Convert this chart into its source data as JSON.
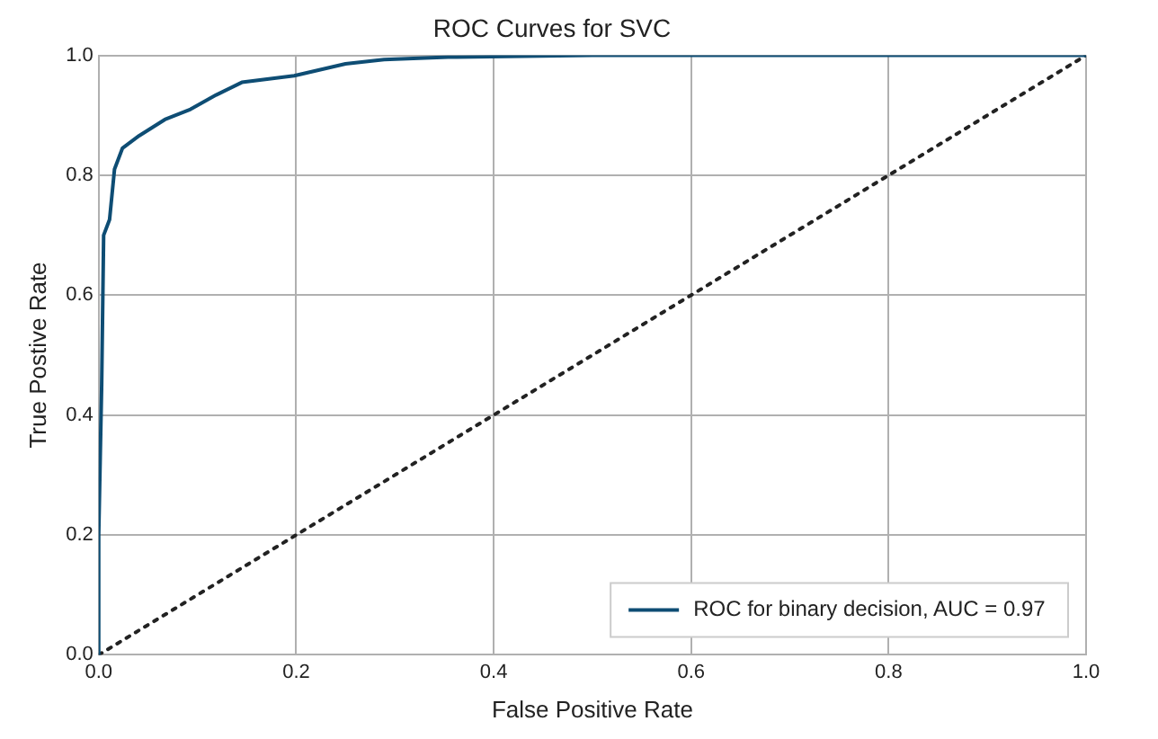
{
  "chart_data": {
    "type": "line",
    "title": "ROC Curves for SVC",
    "xlabel": "False Positive Rate",
    "ylabel": "True Postive Rate",
    "xlim": [
      0,
      1
    ],
    "ylim": [
      0,
      1
    ],
    "xticks": [
      {
        "value": 0,
        "label": "0.0"
      },
      {
        "value": 0.2,
        "label": "0.2"
      },
      {
        "value": 0.4,
        "label": "0.4"
      },
      {
        "value": 0.6,
        "label": "0.6"
      },
      {
        "value": 0.8,
        "label": "0.8"
      },
      {
        "value": 1,
        "label": "1.0"
      }
    ],
    "yticks": [
      {
        "value": 0,
        "label": "0.0"
      },
      {
        "value": 0.2,
        "label": "0.2"
      },
      {
        "value": 0.4,
        "label": "0.4"
      },
      {
        "value": 0.6,
        "label": "0.6"
      },
      {
        "value": 0.8,
        "label": "0.8"
      },
      {
        "value": 1,
        "label": "1.0"
      }
    ],
    "grid": true,
    "legend": "bottom right",
    "marker": "none",
    "series": [
      {
        "name": "ROC for binary decision, AUC = 0.97",
        "color": "#0e4d74",
        "line_style": "solid",
        "x": [
          0,
          0,
          0.003,
          0.005,
          0.011,
          0.016,
          0.024,
          0.041,
          0.067,
          0.093,
          0.119,
          0.145,
          0.198,
          0.25,
          0.289,
          0.354,
          0.5,
          0.7,
          1
        ],
        "values": [
          0,
          0.2,
          0.45,
          0.7,
          0.726,
          0.81,
          0.845,
          0.866,
          0.893,
          0.91,
          0.934,
          0.955,
          0.966,
          0.986,
          0.993,
          0.997,
          1,
          1,
          1
        ]
      },
      {
        "color": "#222222",
        "line_style": "dotted",
        "x": [
          0,
          1
        ],
        "values": [
          0,
          1
        ]
      }
    ]
  }
}
